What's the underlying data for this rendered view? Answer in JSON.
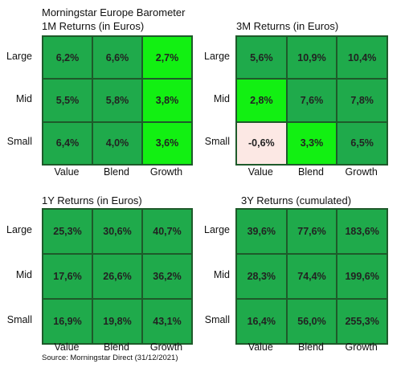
{
  "title": "Morningstar Europe Barometer",
  "source": "Source: Morningstar Direct (31/12/2021)",
  "colors": {
    "dark_green": "#1faa4b",
    "bright_green": "#12f012",
    "negative": "#fce8e4",
    "border": "#1e5a2a"
  },
  "chart_data": [
    {
      "type": "heatmap",
      "title": "1M Returns (in Euros)",
      "rows": [
        "Large",
        "Mid",
        "Small"
      ],
      "columns": [
        "Value",
        "Blend",
        "Growth"
      ],
      "values": [
        [
          6.2,
          6.6,
          2.7
        ],
        [
          5.5,
          5.8,
          3.8
        ],
        [
          6.4,
          4.0,
          3.6
        ]
      ],
      "labels": [
        [
          "6,2%",
          "6,6%",
          "2,7%"
        ],
        [
          "5,5%",
          "5,8%",
          "3,8%"
        ],
        [
          "6,4%",
          "4,0%",
          "3,6%"
        ]
      ]
    },
    {
      "type": "heatmap",
      "title": "3M Returns (in Euros)",
      "rows": [
        "Large",
        "Mid",
        "Small"
      ],
      "columns": [
        "Value",
        "Blend",
        "Growth"
      ],
      "values": [
        [
          5.6,
          10.9,
          10.4
        ],
        [
          2.8,
          7.6,
          7.8
        ],
        [
          -0.6,
          3.3,
          6.5
        ]
      ],
      "labels": [
        [
          "5,6%",
          "10,9%",
          "10,4%"
        ],
        [
          "2,8%",
          "7,6%",
          "7,8%"
        ],
        [
          "-0,6%",
          "3,3%",
          "6,5%"
        ]
      ]
    },
    {
      "type": "heatmap",
      "title": "1Y Returns (in Euros)",
      "rows": [
        "Large",
        "Mid",
        "Small"
      ],
      "columns": [
        "Value",
        "Blend",
        "Growth"
      ],
      "values": [
        [
          25.3,
          30.6,
          40.7
        ],
        [
          17.6,
          26.6,
          36.2
        ],
        [
          16.9,
          19.8,
          43.1
        ]
      ],
      "labels": [
        [
          "25,3%",
          "30,6%",
          "40,7%"
        ],
        [
          "17,6%",
          "26,6%",
          "36,2%"
        ],
        [
          "16,9%",
          "19,8%",
          "43,1%"
        ]
      ]
    },
    {
      "type": "heatmap",
      "title": "3Y Returns (cumulated)",
      "rows": [
        "Large",
        "Mid",
        "Small"
      ],
      "columns": [
        "Value",
        "Blend",
        "Growth"
      ],
      "values": [
        [
          39.6,
          77.6,
          183.6
        ],
        [
          28.3,
          74.4,
          199.6
        ],
        [
          16.4,
          56.0,
          255.3
        ]
      ],
      "labels": [
        [
          "39,6%",
          "77,6%",
          "183,6%"
        ],
        [
          "28,3%",
          "74,4%",
          "199,6%"
        ],
        [
          "16,4%",
          "56,0%",
          "255,3%"
        ]
      ]
    }
  ]
}
